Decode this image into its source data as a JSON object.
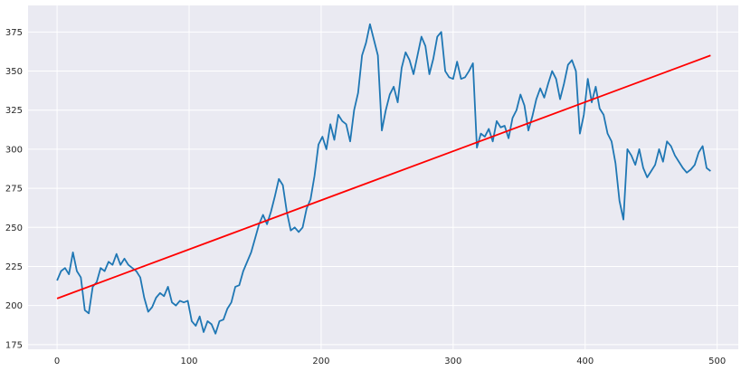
{
  "chart_data": {
    "type": "line",
    "title": "",
    "xlabel": "",
    "ylabel": "",
    "xlim": [
      -22,
      516
    ],
    "ylim": [
      172,
      392
    ],
    "x_ticks": [
      0,
      100,
      200,
      300,
      400,
      500
    ],
    "x_tick_labels": [
      "0",
      "100",
      "200",
      "300",
      "400",
      "500"
    ],
    "y_ticks": [
      175,
      200,
      225,
      250,
      275,
      300,
      325,
      350,
      375
    ],
    "y_tick_labels": [
      "175",
      "200",
      "225",
      "250",
      "275",
      "300",
      "325",
      "350",
      "375"
    ],
    "grid": true,
    "background": "#eaeaf2",
    "series": [
      {
        "color": "#1f77b4",
        "x": [
          0,
          3,
          6,
          9,
          12,
          15,
          18,
          21,
          24,
          27,
          30,
          33,
          36,
          39,
          42,
          45,
          48,
          51,
          54,
          57,
          60,
          63,
          66,
          69,
          72,
          75,
          78,
          81,
          84,
          87,
          90,
          93,
          96,
          99,
          102,
          105,
          108,
          111,
          114,
          117,
          120,
          123,
          126,
          129,
          132,
          135,
          138,
          141,
          144,
          147,
          150,
          153,
          156,
          159,
          162,
          165,
          168,
          171,
          174,
          177,
          180,
          183,
          186,
          189,
          192,
          195,
          198,
          201,
          204,
          207,
          210,
          213,
          216,
          219,
          222,
          225,
          228,
          231,
          234,
          237,
          240,
          243,
          246,
          249,
          252,
          255,
          258,
          261,
          264,
          267,
          270,
          273,
          276,
          279,
          282,
          285,
          288,
          291,
          294,
          297,
          300,
          303,
          306,
          309,
          312,
          315,
          318,
          321,
          324,
          327,
          330,
          333,
          336,
          339,
          342,
          345,
          348,
          351,
          354,
          357,
          360,
          363,
          366,
          369,
          372,
          375,
          378,
          381,
          384,
          387,
          390,
          393,
          396,
          399,
          402,
          405,
          408,
          411,
          414,
          417,
          420,
          423,
          426,
          429,
          432,
          435,
          438,
          441,
          444,
          447,
          450,
          453,
          456,
          459,
          462,
          465,
          468,
          471,
          474,
          477,
          480,
          483,
          486,
          489,
          492,
          495
        ],
        "y": [
          216,
          222,
          224,
          220,
          234,
          222,
          218,
          197,
          195,
          212,
          215,
          224,
          222,
          228,
          226,
          233,
          226,
          230,
          226,
          224,
          222,
          218,
          205,
          196,
          199,
          205,
          208,
          206,
          212,
          202,
          200,
          203,
          202,
          203,
          190,
          187,
          193,
          183,
          190,
          188,
          182,
          190,
          191,
          198,
          202,
          212,
          213,
          222,
          228,
          234,
          243,
          252,
          258,
          252,
          260,
          270,
          281,
          277,
          260,
          248,
          250,
          247,
          250,
          262,
          268,
          283,
          303,
          308,
          300,
          316,
          306,
          322,
          318,
          316,
          305,
          325,
          336,
          360,
          368,
          380,
          370,
          360,
          312,
          325,
          335,
          340,
          330,
          352,
          362,
          357,
          348,
          360,
          372,
          366,
          348,
          358,
          372,
          375,
          350,
          346,
          345,
          356,
          345,
          346,
          350,
          355,
          301,
          310,
          308,
          313,
          305,
          318,
          314,
          315,
          307,
          320,
          325,
          335,
          328,
          312,
          321,
          332,
          339,
          333,
          342,
          350,
          345,
          332,
          342,
          354,
          357,
          350,
          310,
          322,
          345,
          330,
          340,
          326,
          322,
          310,
          305,
          291,
          267,
          255,
          300,
          296,
          290,
          300,
          288,
          282,
          286,
          290,
          300,
          292,
          305,
          302,
          296,
          292,
          288,
          285,
          287,
          290,
          298,
          302,
          288,
          286
        ]
      },
      {
        "color": "#ff0000",
        "x": [
          0,
          495
        ],
        "y": [
          204.5,
          360
        ]
      }
    ]
  }
}
